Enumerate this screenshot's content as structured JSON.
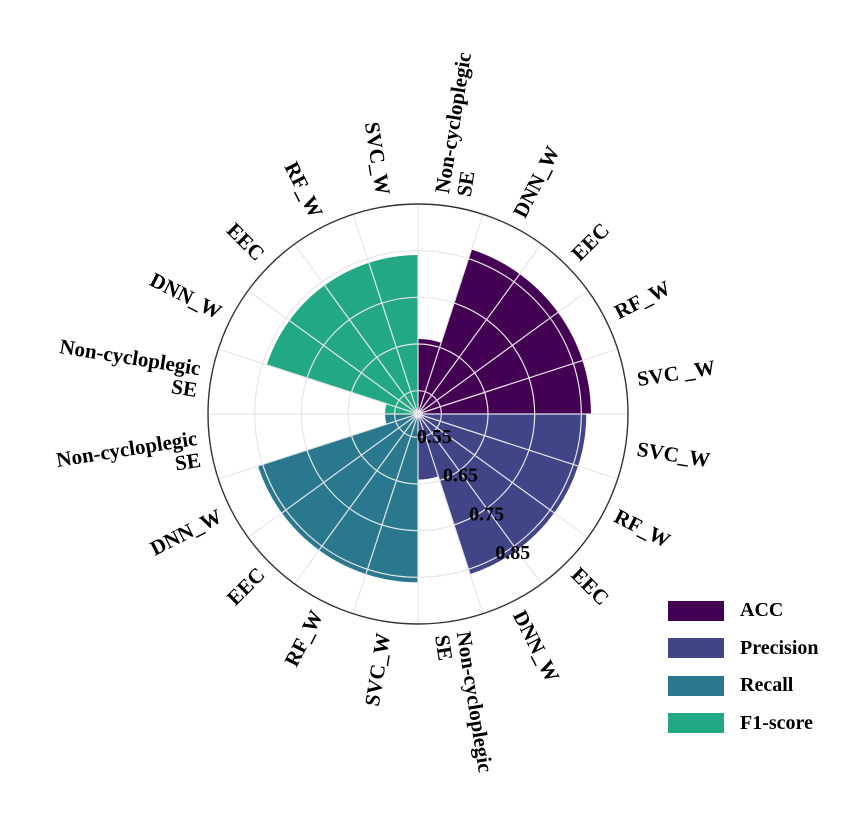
{
  "chart_data": {
    "type": "polar-bar",
    "r_ticks": [
      0.55,
      0.65,
      0.75,
      0.85
    ],
    "r_tick_labels": [
      "0.55",
      "0.65",
      "0.75",
      "0.85"
    ],
    "r_range": [
      0.5,
      0.95
    ],
    "grid": true,
    "legend_position": "bottom-right",
    "series": [
      {
        "name": "ACC",
        "color": "#440154",
        "categories": [
          "Non-cycloplegic\nSE",
          "DNN_W",
          "EEC",
          "RF_W",
          "SVC _W"
        ],
        "values": [
          0.66,
          0.87,
          0.87,
          0.87,
          0.87
        ]
      },
      {
        "name": "Precision",
        "color": "#414487",
        "categories": [
          "SVC_W",
          "RF_W",
          "EEC",
          "DNN_W",
          "Non-cycloplegic\nSE"
        ],
        "values": [
          0.86,
          0.86,
          0.86,
          0.86,
          0.64
        ]
      },
      {
        "name": "Recall",
        "color": "#2a788e",
        "categories": [
          "SVC_W",
          "RF_W",
          "EEC",
          "DNN_W",
          "Non-cycloplegic\nSE"
        ],
        "values": [
          0.86,
          0.86,
          0.86,
          0.86,
          0.57
        ]
      },
      {
        "name": "F1-score",
        "color": "#22a884",
        "categories": [
          "Non-cycloplegic\nSE",
          "DNN_W",
          "EEC",
          "RF_W",
          "SVC_W"
        ],
        "values": [
          0.57,
          0.84,
          0.84,
          0.84,
          0.84
        ]
      }
    ]
  },
  "legend": {
    "items": [
      {
        "label": "ACC",
        "color": "#440154"
      },
      {
        "label": "Precision",
        "color": "#414487"
      },
      {
        "label": "Recall",
        "color": "#2a788e"
      },
      {
        "label": "F1-score",
        "color": "#22a884"
      }
    ]
  }
}
